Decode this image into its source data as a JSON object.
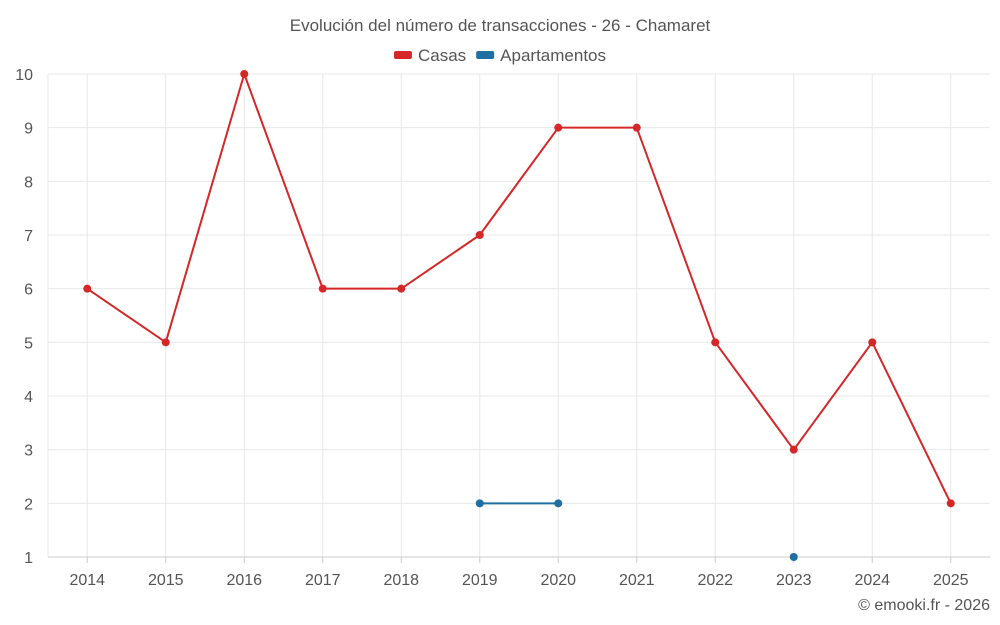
{
  "chart_data": {
    "type": "line",
    "title": "Evolución del número de transacciones - 26 - Chamaret",
    "categories": [
      "2014",
      "2015",
      "2016",
      "2017",
      "2018",
      "2019",
      "2020",
      "2021",
      "2022",
      "2023",
      "2024",
      "2025"
    ],
    "series": [
      {
        "name": "Casas",
        "color": "#d62728",
        "values": [
          6,
          5,
          10,
          6,
          6,
          7,
          9,
          9,
          5,
          3,
          5,
          2
        ]
      },
      {
        "name": "Apartamentos",
        "color": "#1f6fa3",
        "values": [
          null,
          null,
          null,
          null,
          null,
          2,
          2,
          null,
          null,
          1,
          null,
          null
        ]
      }
    ],
    "ylim": [
      1,
      10
    ],
    "yticks": [
      1,
      2,
      3,
      4,
      5,
      6,
      7,
      8,
      9,
      10
    ],
    "grid": true,
    "legend_position": "top-center",
    "xlabel": "",
    "ylabel": ""
  },
  "credit": "© emooki.fr - 2026"
}
